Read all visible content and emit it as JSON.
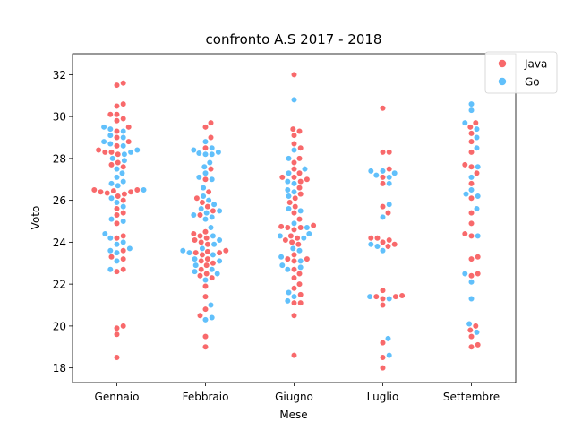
{
  "chart_data": {
    "type": "scatter",
    "title": "confronto A.S 2017 - 2018",
    "xlabel": "Mese",
    "ylabel": "Voto",
    "categories": [
      "Gennaio",
      "Febbraio",
      "Giugno",
      "Luglio",
      "Settembre"
    ],
    "ylim": [
      17.3,
      33.0
    ],
    "yticks": [
      "18",
      "20",
      "22",
      "24",
      "26",
      "28",
      "30",
      "32"
    ],
    "legend": "top-right",
    "series": [
      {
        "name": "Java",
        "color": "#f8696b",
        "values": [
          [
            31.6,
            31.5,
            30.6,
            30.5,
            30.1,
            30.1,
            29.9,
            29.8,
            29.5,
            29.3,
            29.0,
            28.8,
            28.6,
            28.4,
            28.3,
            28.3,
            28.2,
            27.8,
            27.7,
            27.6,
            26.5,
            26.5,
            26.45,
            26.4,
            26.4,
            26.35,
            26.3,
            26.2,
            26.0,
            25.6,
            25.4,
            25.3,
            24.9,
            24.3,
            24.2,
            23.6,
            23.3,
            23.2,
            22.7,
            22.6,
            20.0,
            19.9,
            19.6,
            18.5
          ],
          [
            29.7,
            29.5,
            29.0,
            28.5,
            27.5,
            27.0,
            26.4,
            26.1,
            25.9,
            25.7,
            25.5,
            25.3,
            24.5,
            24.4,
            24.3,
            24.2,
            24.1,
            24.0,
            23.9,
            23.6,
            23.55,
            23.5,
            23.5,
            23.4,
            23.2,
            23.1,
            23.0,
            22.9,
            22.7,
            22.5,
            22.4,
            22.3,
            21.9,
            21.4,
            20.8,
            20.5,
            19.5,
            19.0
          ],
          [
            32.0,
            29.4,
            29.3,
            29.1,
            28.7,
            28.5,
            28.0,
            27.8,
            27.5,
            27.3,
            27.1,
            27.1,
            27.0,
            26.9,
            26.6,
            26.3,
            26.1,
            25.9,
            25.7,
            25.4,
            25.1,
            24.8,
            24.75,
            24.7,
            24.7,
            24.6,
            24.3,
            24.2,
            24.1,
            24.0,
            23.9,
            23.4,
            23.2,
            23.2,
            23.1,
            22.7,
            22.5,
            22.3,
            22.0,
            21.8,
            21.5,
            21.1,
            21.1,
            20.5,
            18.6
          ],
          [
            30.4,
            28.3,
            28.3,
            27.5,
            27.1,
            26.8,
            25.7,
            25.4,
            24.2,
            24.2,
            24.1,
            24.0,
            23.9,
            23.8,
            21.7,
            21.45,
            21.4,
            21.4,
            21.3,
            21.0,
            19.2,
            18.5,
            18.0
          ],
          [
            29.7,
            29.5,
            29.2,
            28.8,
            28.3,
            27.7,
            27.6,
            27.3,
            26.8,
            26.1,
            25.4,
            24.9,
            24.4,
            24.3,
            23.3,
            23.2,
            22.5,
            22.4,
            20.0,
            19.8,
            19.5,
            19.1,
            19.0
          ]
        ]
      },
      {
        "name": "Go",
        "color": "#61c0fb",
        "values": [
          [
            29.5,
            29.4,
            29.3,
            29.1,
            29.0,
            28.8,
            28.7,
            28.6,
            28.4,
            28.3,
            28.2,
            28.0,
            27.9,
            27.5,
            27.3,
            27.1,
            26.9,
            26.8,
            26.7,
            26.5,
            26.1,
            25.9,
            25.7,
            25.1,
            25.0,
            24.4,
            24.2,
            24.0,
            23.9,
            23.7,
            23.6,
            23.5,
            23.1,
            22.7
          ],
          [
            28.8,
            28.5,
            28.4,
            28.3,
            28.25,
            28.2,
            28.2,
            27.8,
            27.6,
            27.3,
            27.1,
            27.0,
            26.6,
            26.2,
            26.0,
            25.8,
            25.6,
            25.5,
            25.4,
            25.3,
            25.2,
            25.1,
            24.7,
            24.3,
            24.1,
            23.9,
            23.7,
            23.6,
            23.5,
            23.4,
            23.2,
            23.1,
            22.9,
            22.7,
            22.6,
            22.5,
            22.2,
            21.0,
            20.4,
            20.3
          ],
          [
            30.8,
            28.4,
            28.0,
            27.5,
            27.3,
            26.9,
            26.8,
            26.5,
            26.4,
            26.2,
            25.6,
            25.5,
            24.9,
            24.7,
            24.4,
            24.3,
            24.2,
            23.7,
            23.6,
            23.3,
            23.1,
            22.9,
            22.8,
            22.7,
            21.6,
            21.4,
            21.2
          ],
          [
            27.4,
            27.4,
            27.3,
            27.2,
            27.1,
            26.8,
            25.8,
            25.2,
            23.9,
            23.8,
            23.6,
            21.4,
            21.3,
            19.4,
            18.6
          ],
          [
            30.6,
            30.3,
            29.7,
            29.4,
            29.0,
            28.5,
            27.6,
            27.1,
            26.5,
            26.3,
            26.2,
            25.6,
            24.3,
            22.5,
            22.1,
            21.3,
            20.1,
            19.7
          ]
        ]
      }
    ]
  }
}
